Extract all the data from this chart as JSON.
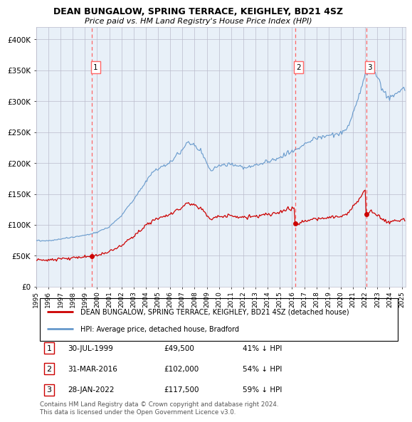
{
  "title": "DEAN BUNGALOW, SPRING TERRACE, KEIGHLEY, BD21 4SZ",
  "subtitle": "Price paid vs. HM Land Registry's House Price Index (HPI)",
  "ylim": [
    0,
    420000
  ],
  "yticks": [
    0,
    50000,
    100000,
    150000,
    200000,
    250000,
    300000,
    350000,
    400000
  ],
  "ytick_labels": [
    "£0",
    "£50K",
    "£100K",
    "£150K",
    "£200K",
    "£250K",
    "£300K",
    "£350K",
    "£400K"
  ],
  "hpi_color": "#6699CC",
  "price_color": "#CC0000",
  "vline_color": "#FF6666",
  "bg_color": "#FFFFFF",
  "chart_bg_color": "#E8F0F8",
  "grid_color": "#BBBBCC",
  "transactions": [
    {
      "num": 1,
      "date": "30-JUL-1999",
      "price": 49500,
      "pct": "41%",
      "x_year": 1999.58
    },
    {
      "num": 2,
      "date": "31-MAR-2016",
      "price": 102000,
      "pct": "54%",
      "x_year": 2016.25
    },
    {
      "num": 3,
      "date": "28-JAN-2022",
      "price": 117500,
      "pct": "59%",
      "x_year": 2022.08
    }
  ],
  "legend_label_red": "DEAN BUNGALOW, SPRING TERRACE, KEIGHLEY, BD21 4SZ (detached house)",
  "legend_label_blue": "HPI: Average price, detached house, Bradford",
  "footer": "Contains HM Land Registry data © Crown copyright and database right 2024.\nThis data is licensed under the Open Government Licence v3.0.",
  "xlim_start": 1995.0,
  "xlim_end": 2025.3
}
